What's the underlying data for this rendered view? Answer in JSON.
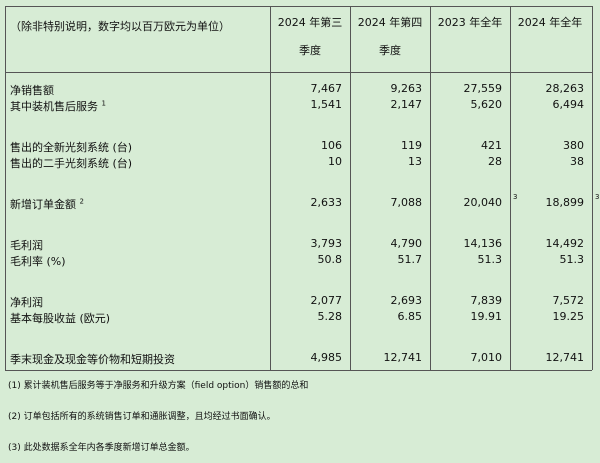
{
  "header": {
    "caption": "（除非特别说明，数字均以百万欧元为单位）",
    "columns": [
      "2024 年第三季度",
      "2024 年第四季度",
      "2023 年全年",
      "2024 年全年"
    ]
  },
  "groups": [
    [
      {
        "label": "净销售额",
        "values": [
          "7,467",
          "9,263",
          "27,559",
          "28,263"
        ]
      },
      {
        "label": "其中装机售后服务",
        "note": "1",
        "values": [
          "1,541",
          "2,147",
          "5,620",
          "6,494"
        ]
      }
    ],
    [
      {
        "label": "售出的全新光刻系统 (台)",
        "values": [
          "106",
          "119",
          "421",
          "380"
        ]
      },
      {
        "label": "售出的二手光刻系统 (台)",
        "values": [
          "10",
          "13",
          "28",
          "38"
        ]
      }
    ],
    [
      {
        "label": "新增订单金额",
        "note": "2",
        "values": [
          "2,633",
          "7,088",
          "20,040",
          "18,899"
        ],
        "value_notes": {
          "2": "3",
          "3": "3"
        }
      }
    ],
    [
      {
        "label": "毛利润",
        "values": [
          "3,793",
          "4,790",
          "14,136",
          "14,492"
        ]
      },
      {
        "label": "毛利率 (%)",
        "values": [
          "50.8",
          "51.7",
          "51.3",
          "51.3"
        ]
      }
    ],
    [
      {
        "label": "净利润",
        "values": [
          "2,077",
          "2,693",
          "7,839",
          "7,572"
        ]
      },
      {
        "label": "基本每股收益 (欧元)",
        "values": [
          "5.28",
          "6.85",
          "19.91",
          "19.25"
        ]
      }
    ],
    [
      {
        "label": "季末现金及现金等价物和短期投资",
        "values": [
          "4,985",
          "12,741",
          "7,010",
          "12,741"
        ]
      }
    ]
  ],
  "footnotes": [
    "(1)  累计装机售后服务等于净服务和升级方案（field option）销售额的总和",
    "(2)  订单包括所有的系统销售订单和通胀调整，且均经过书面确认。",
    "(3)  此处数据系全年内各季度新增订单总金额。"
  ]
}
